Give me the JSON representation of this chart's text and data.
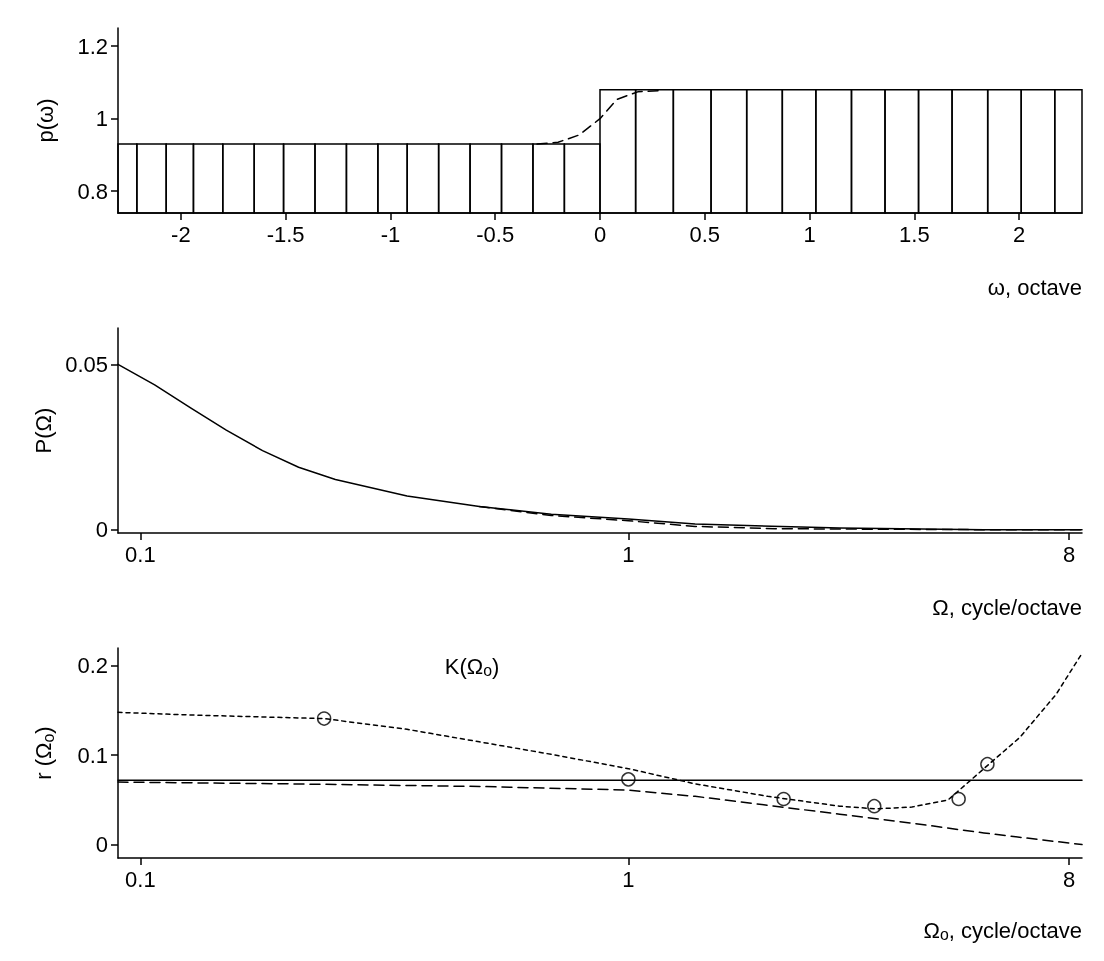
{
  "chart_data": [
    {
      "type": "histogram",
      "ylabel": "p(ω)",
      "xlabel": "ω, octave",
      "xlim": [
        -2.3,
        2.3
      ],
      "ylim": [
        0.74,
        1.25
      ],
      "xticks": [
        -2,
        -1.5,
        -1,
        -0.5,
        0,
        0.5,
        1,
        1.5,
        2
      ],
      "yticks": [
        0.8,
        1,
        1.2
      ],
      "grid": false,
      "bins": [
        -2.3,
        -2.21,
        -2.07,
        -1.94,
        -1.8,
        -1.65,
        -1.51,
        -1.36,
        -1.21,
        -1.06,
        -0.92,
        -0.77,
        -0.62,
        -0.47,
        -0.32,
        -0.17,
        0,
        0.17,
        0.35,
        0.53,
        0.7,
        0.87,
        1.03,
        1.2,
        1.36,
        1.52,
        1.68,
        1.85,
        2.01,
        2.17,
        2.3
      ],
      "series": [
        {
          "color": "#000000",
          "values": [
            0.93,
            0.93,
            0.93,
            0.93,
            0.93,
            0.93,
            0.93,
            0.93,
            0.93,
            0.93,
            0.93,
            0.93,
            0.93,
            0.93,
            0.93,
            0.93,
            1.08,
            1.08,
            1.08,
            1.08,
            1.08,
            1.08,
            1.08,
            1.08,
            1.08,
            1.08,
            1.08,
            1.08,
            1.08,
            1.08
          ]
        },
        {
          "type": "line",
          "color": "#000000",
          "line_style": "dashed",
          "marker": "none",
          "x": [
            -0.3,
            -0.2,
            -0.1,
            0,
            0.08,
            0.18,
            0.3
          ],
          "values": [
            0.93,
            0.935,
            0.955,
            1.0,
            1.053,
            1.074,
            1.078
          ]
        }
      ]
    },
    {
      "type": "line",
      "ylabel": "P(Ω)",
      "xlabel": "Ω, cycle/octave",
      "log": "x",
      "xlim": [
        0.09,
        8.5
      ],
      "ylim": [
        -0.001,
        0.061
      ],
      "xticks": [
        0.1,
        1,
        8
      ],
      "yticks": [
        0,
        0.05
      ],
      "grid": false,
      "marker": "none",
      "series": [
        {
          "color": "#000000",
          "line_style": "solid",
          "x": [
            0.09,
            0.107,
            0.127,
            0.15,
            0.178,
            0.211,
            0.251,
            0.352,
            0.495,
            0.695,
            1,
            1.37,
            2.71,
            5.35,
            8.5
          ],
          "values": [
            0.05,
            0.0438,
            0.0368,
            0.0301,
            0.0239,
            0.0189,
            0.0152,
            0.0102,
            0.007,
            0.0047,
            0.0032,
            0.0017,
            0.0005,
            0,
            0
          ]
        },
        {
          "color": "#000000",
          "line_style": "dashed",
          "x": [
            0.495,
            0.695,
            1,
            1.37,
            2,
            2.71,
            5.35,
            8.5
          ],
          "values": [
            0.007,
            0.0043,
            0.0027,
            0.001,
            0.0003,
            0.0002,
            0,
            0
          ]
        }
      ]
    },
    {
      "type": "line",
      "ylabel": "r (Ω$_{o}$)",
      "xlabel": "Ω$_{o}$, cycle/octave",
      "log": "x",
      "xlim": [
        0.09,
        8.5
      ],
      "ylim": [
        -0.015,
        0.22
      ],
      "xticks": [
        0.1,
        1,
        8
      ],
      "yticks": [
        0,
        0.1,
        0.2
      ],
      "grid": false,
      "marker": "none",
      "annotations": [
        "K(Ω$_{o}$)"
      ],
      "series": [
        {
          "color": "#000000",
          "line_style": "solid",
          "x": [
            0.09,
            8.5
          ],
          "values": [
            0.072,
            0.072
          ]
        },
        {
          "color": "#000000",
          "line_style": "dotted",
          "x": [
            0.09,
            0.127,
            0.238,
            0.352,
            0.495,
            0.695,
            1,
            1.37,
            1.93,
            2.71,
            3.21,
            3.81,
            4.52,
            5.35,
            6.34,
            7.52,
            8.5
          ],
          "values": [
            0.148,
            0.145,
            0.141,
            0.129,
            0.115,
            0.101,
            0.085,
            0.068,
            0.054,
            0.043,
            0.04,
            0.042,
            0.05,
            0.085,
            0.12,
            0.168,
            0.214
          ]
        },
        {
          "color": "#000000",
          "line_style": "dashed",
          "x": [
            0.09,
            0.2,
            0.5,
            1,
            1.37,
            1.93,
            2.71,
            3.81,
            5.35,
            8.5
          ],
          "values": [
            0.07,
            0.068,
            0.065,
            0.061,
            0.054,
            0.044,
            0.034,
            0.024,
            0.013,
            0
          ]
        },
        {
          "type": "scatter",
          "color": "#000000",
          "marker": "circle",
          "x": [
            0.238,
            1,
            2.08,
            3.19,
            4.75,
            5.44
          ],
          "values": [
            0.141,
            0.073,
            0.051,
            0.043,
            0.051,
            0.09
          ]
        }
      ]
    }
  ]
}
